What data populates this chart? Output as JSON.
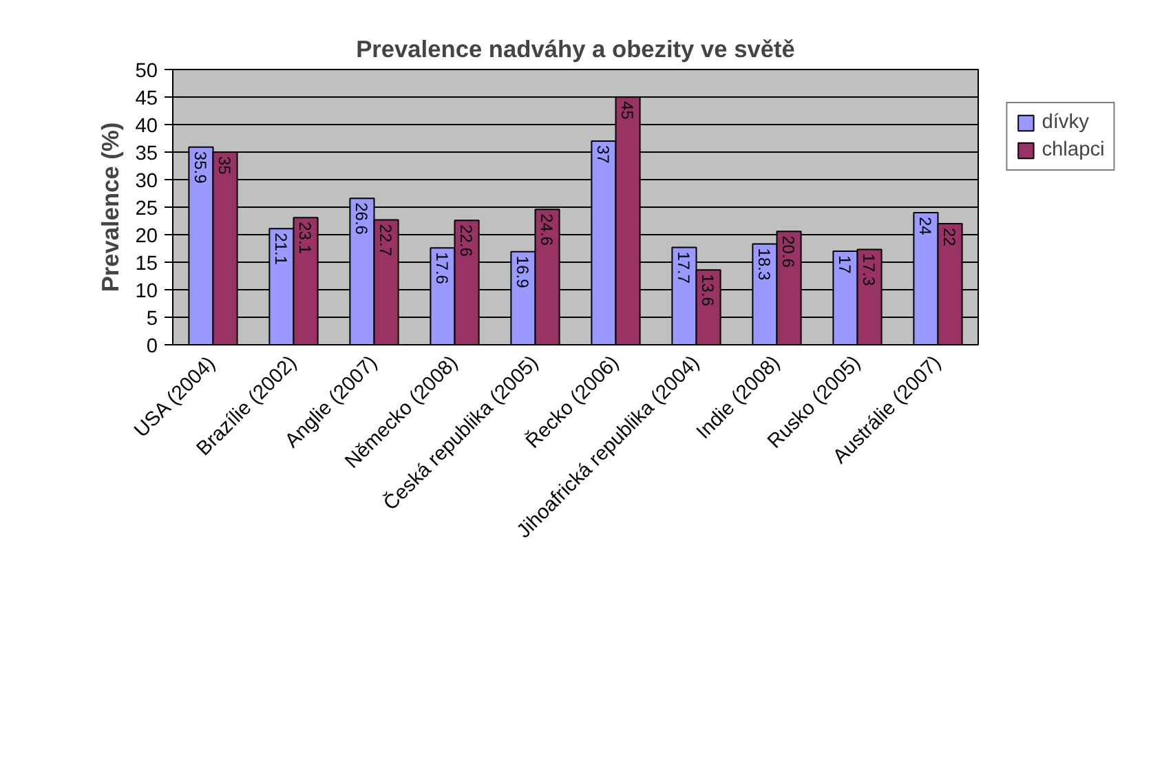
{
  "chart_data": {
    "type": "bar",
    "title": "Prevalence nadváhy a obezity ve světě",
    "ylabel": "Prevalence (%)",
    "categories": [
      "USA (2004)",
      "Brazílie (2002)",
      "Anglie (2007)",
      "Německo (2008)",
      "Česká republika (2005)",
      "Řecko (2006)",
      "Jihoafrická republika (2004)",
      "Indie (2008)",
      "Rusko (2005)",
      "Austrálie (2007)"
    ],
    "series": [
      {
        "name": "dívky",
        "color": "#9999ff",
        "values": [
          35.9,
          21.1,
          26.6,
          17.6,
          16.9,
          37,
          17.7,
          18.3,
          17,
          24
        ]
      },
      {
        "name": "chlapci",
        "color": "#993366",
        "values": [
          35,
          23.1,
          22.7,
          22.6,
          24.6,
          45,
          13.6,
          20.6,
          17.3,
          22
        ]
      }
    ],
    "ylim": [
      0,
      50
    ],
    "yticks": [
      0,
      5,
      10,
      15,
      20,
      25,
      30,
      35,
      40,
      45,
      50
    ],
    "grid": "y",
    "legend": "right",
    "data_labels": true
  }
}
